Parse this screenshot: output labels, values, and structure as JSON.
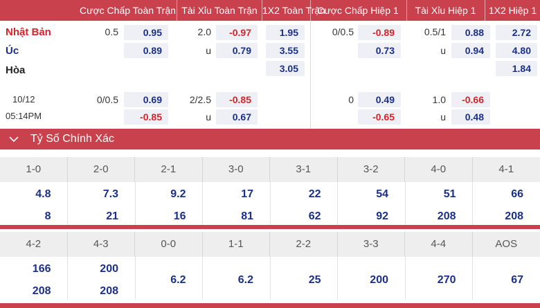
{
  "header": {
    "cols": [
      "Cược Chấp Toàn Trận",
      "Tài Xỉu Toàn Trận",
      "1X2 Toàn Trận",
      "Cược Chấp Hiệp 1",
      "Tài Xỉu Hiệp 1",
      "1X2 Hiệp 1"
    ]
  },
  "teams": {
    "home": "Nhật Bản",
    "away": "Úc",
    "draw": "Hòa"
  },
  "colors": {
    "accent": "#c8414c",
    "home": "#d8232a",
    "away": "#1a2f8a"
  },
  "odds": {
    "r1": {
      "hcap_line": "0.5",
      "hcap_home": "0.95",
      "hcap_away": "0.89",
      "ou_line": "2.0",
      "ou_over": "-0.97",
      "ou_u": "u",
      "ou_under": "0.79",
      "x12_home": "1.95",
      "x12_away": "3.55",
      "x12_draw": "3.05",
      "h1_hcap_line": "0/0.5",
      "h1_hcap_home": "-0.89",
      "h1_hcap_away": "0.73",
      "h1_ou_line": "0.5/1",
      "h1_ou_over": "0.88",
      "h1_ou_u": "u",
      "h1_ou_under": "0.94",
      "h1_x12_home": "2.72",
      "h1_x12_away": "4.80",
      "h1_x12_draw": "1.84"
    },
    "r2": {
      "date": "10/12",
      "time": "05:14PM",
      "hcap_line": "0/0.5",
      "hcap_home": "0.69",
      "hcap_away": "-0.85",
      "ou_line": "2/2.5",
      "ou_over": "-0.85",
      "ou_u": "u",
      "ou_under": "0.67",
      "h1_hcap_line": "0",
      "h1_hcap_home": "0.49",
      "h1_hcap_away": "-0.65",
      "h1_ou_line": "1.0",
      "h1_ou_over": "-0.66",
      "h1_ou_u": "u",
      "h1_ou_under": "0.48"
    }
  },
  "section": {
    "title": "Tỷ Số Chính Xác",
    "icon": "chevron-down-icon"
  },
  "scores1": {
    "labels": [
      "1-0",
      "2-0",
      "2-1",
      "3-0",
      "3-1",
      "3-2",
      "4-0",
      "4-1"
    ],
    "top": [
      "4.8",
      "7.3",
      "9.2",
      "17",
      "22",
      "54",
      "51",
      "66"
    ],
    "bottom": [
      "8",
      "21",
      "16",
      "81",
      "62",
      "92",
      "208",
      "208"
    ]
  },
  "scores2": {
    "labels": [
      "4-2",
      "4-3",
      "0-0",
      "1-1",
      "2-2",
      "3-3",
      "4-4",
      "AOS"
    ],
    "top": [
      "166",
      "200",
      "",
      "",
      "",
      "",
      "",
      ""
    ],
    "bottom": [
      "208",
      "208",
      "",
      "",
      "",
      "",
      "",
      ""
    ],
    "single": [
      "",
      "",
      "6.2",
      "6.2",
      "25",
      "200",
      "270",
      "67"
    ]
  }
}
